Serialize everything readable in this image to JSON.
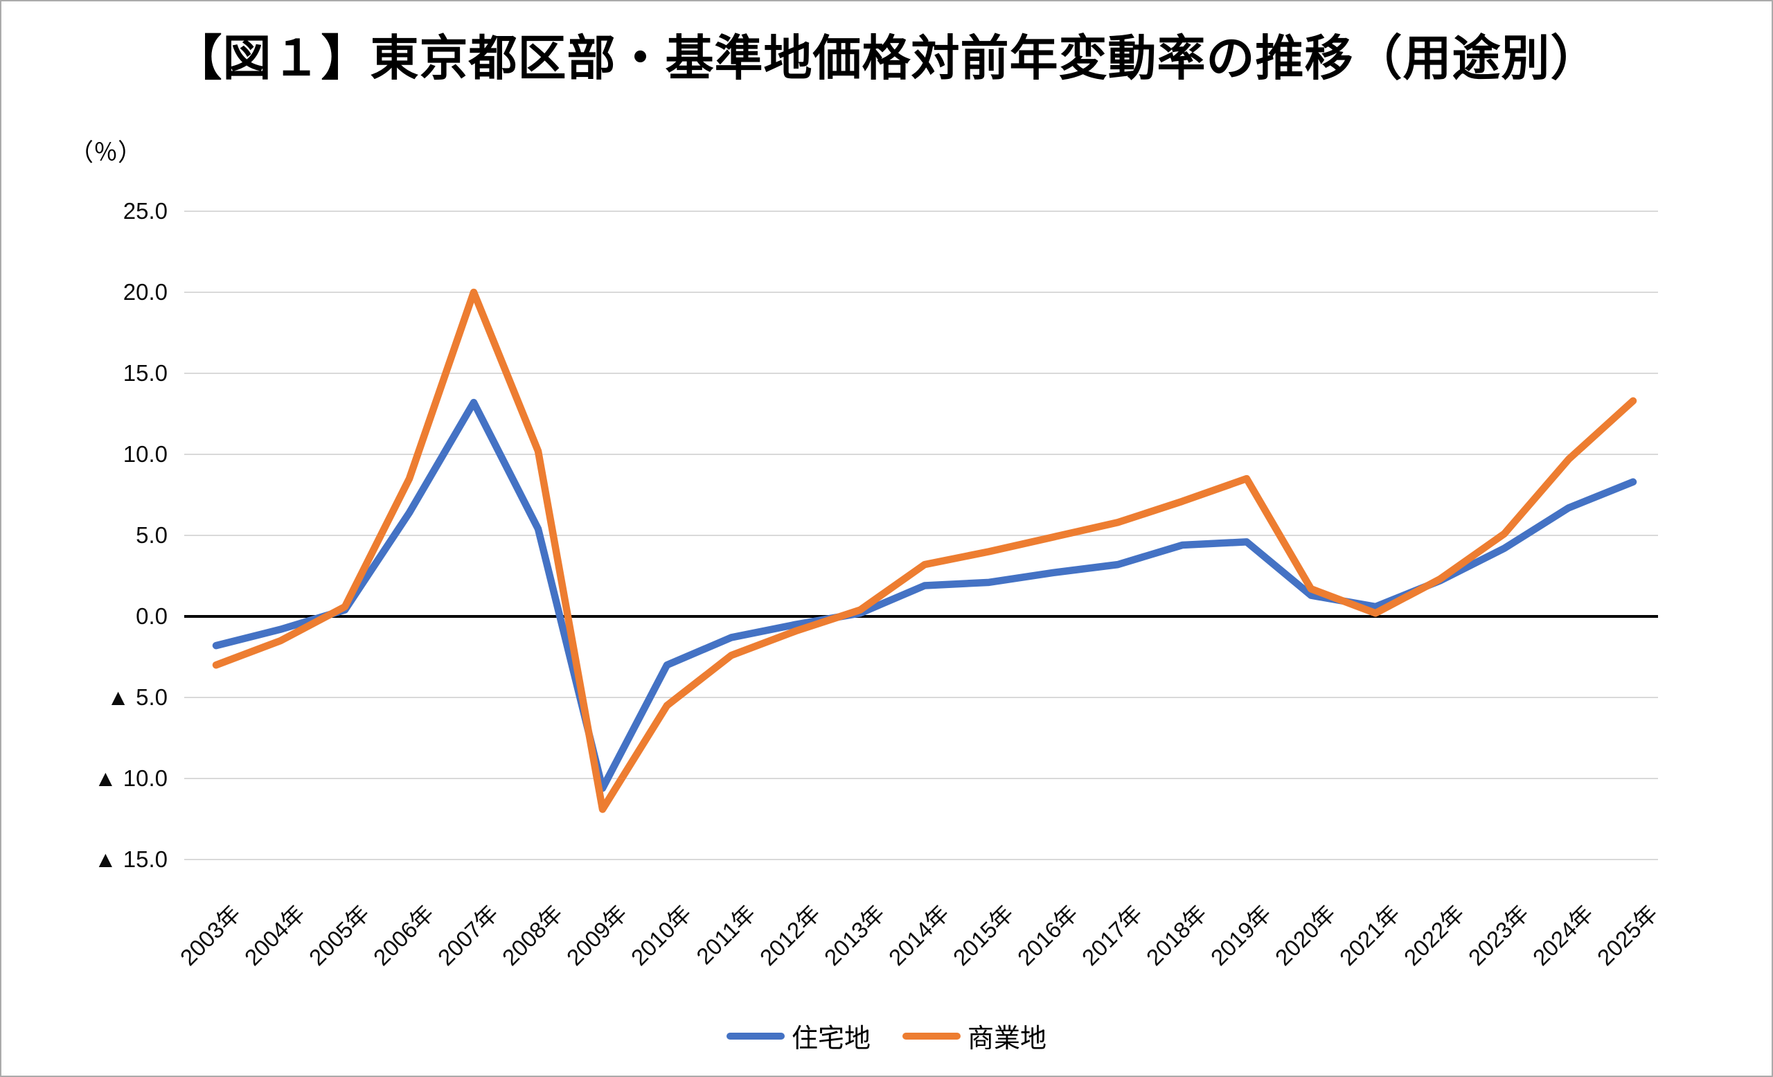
{
  "title": "【図１】東京都区部・基準地価格対前年変動率の推移（用途別）",
  "y_axis_unit": "（％）",
  "legend": [
    {
      "label": "住宅地",
      "color": "#4472C4"
    },
    {
      "label": "商業地",
      "color": "#ED7D31"
    }
  ],
  "chart_data": {
    "type": "line",
    "title": "【図１】東京都区部・基準地価格対前年変動率の推移（用途別）",
    "ylabel": "（％）",
    "ylim": [
      -15,
      25
    ],
    "grid": true,
    "legend_position": "bottom",
    "categories": [
      "2003年",
      "2004年",
      "2005年",
      "2006年",
      "2007年",
      "2008年",
      "2009年",
      "2010年",
      "2011年",
      "2012年",
      "2013年",
      "2014年",
      "2015年",
      "2016年",
      "2017年",
      "2018年",
      "2019年",
      "2020年",
      "2021年",
      "2022年",
      "2023年",
      "2024年",
      "2025年"
    ],
    "yticks": {
      "values": [
        25,
        20,
        15,
        10,
        5,
        0,
        -5,
        -10,
        -15
      ],
      "labels": [
        "25.0",
        "20.0",
        "15.0",
        "10.0",
        "5.0",
        "0.0",
        "▲ 5.0",
        "▲ 10.0",
        "▲ 15.0"
      ]
    },
    "series": [
      {
        "name": "住宅地",
        "color": "#4472C4",
        "values": [
          -1.8,
          -0.8,
          0.4,
          6.4,
          13.2,
          5.4,
          -10.6,
          -3.0,
          -1.3,
          -0.5,
          0.2,
          1.9,
          2.1,
          2.7,
          3.2,
          4.4,
          4.6,
          1.3,
          0.6,
          2.2,
          4.2,
          6.7,
          8.3
        ]
      },
      {
        "name": "商業地",
        "color": "#ED7D31",
        "values": [
          -3.0,
          -1.5,
          0.6,
          8.5,
          20.0,
          10.2,
          -11.9,
          -5.5,
          -2.4,
          -0.9,
          0.4,
          3.2,
          4.0,
          4.9,
          5.8,
          7.1,
          8.5,
          1.7,
          0.2,
          2.3,
          5.1,
          9.7,
          13.3
        ]
      }
    ]
  }
}
